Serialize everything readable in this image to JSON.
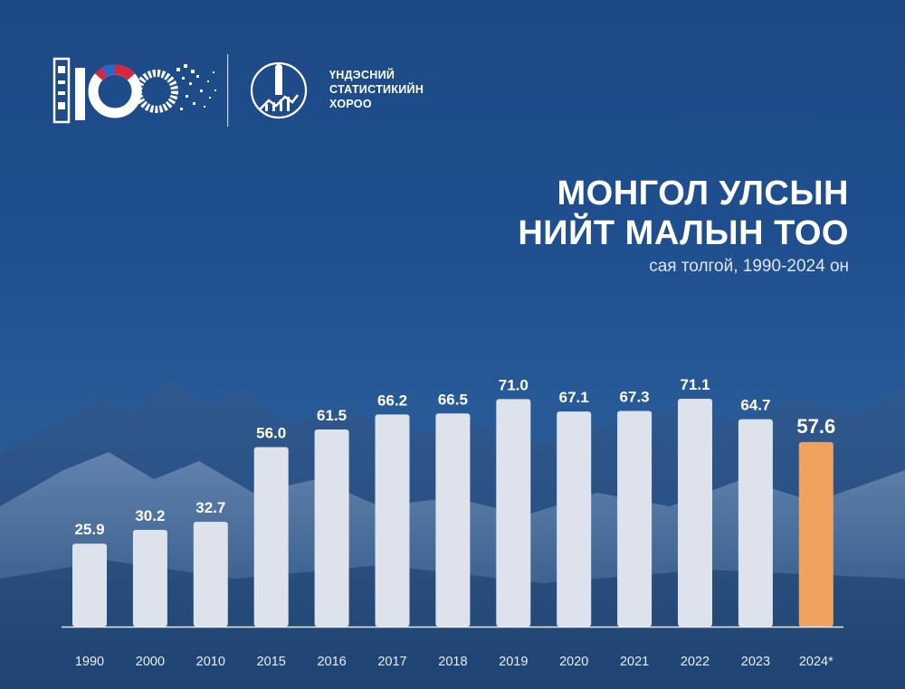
{
  "branding": {
    "org_name_lines": [
      "ҮНДЭСНИЙ",
      "СТАТИСТИКИЙН",
      "ХОРОО"
    ]
  },
  "chart_data": {
    "type": "bar",
    "title_lines": [
      "МОНГОЛ УЛСЫН",
      "НИЙТ МАЛЫН ТОО"
    ],
    "subtitle": "сая толгой, 1990-2024 он",
    "categories": [
      "1990",
      "2000",
      "2010",
      "2015",
      "2016",
      "2017",
      "2018",
      "2019",
      "2020",
      "2021",
      "2022",
      "2023",
      "2024*"
    ],
    "values": [
      25.9,
      30.2,
      32.7,
      56.0,
      61.5,
      66.2,
      66.5,
      71.0,
      67.1,
      67.3,
      71.1,
      64.7,
      57.6
    ],
    "value_labels": [
      "25.9",
      "30.2",
      "32.7",
      "56.0",
      "61.5",
      "66.2",
      "66.5",
      "71.0",
      "67.1",
      "67.3",
      "71.1",
      "64.7",
      "57.6"
    ],
    "ylim": [
      0,
      71.1
    ],
    "highlight_index": 12,
    "colors": {
      "bar": "#dde2ec",
      "highlight": "#f0a35e",
      "axis": "#e6ebf3",
      "label": "#ffffff",
      "value_highlight": "#ffffff"
    },
    "grid": false,
    "legend": "none"
  }
}
